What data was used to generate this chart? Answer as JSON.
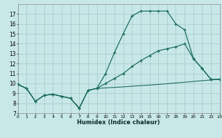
{
  "xlabel": "Humidex (Indice chaleur)",
  "background_color": "#c8e8e8",
  "grid_color": "#a8cccc",
  "line_color": "#1a6b5a",
  "xlim": [
    0,
    23
  ],
  "ylim": [
    7,
    18
  ],
  "yticks": [
    7,
    8,
    9,
    10,
    11,
    12,
    13,
    14,
    15,
    16,
    17
  ],
  "xticks": [
    0,
    1,
    2,
    3,
    4,
    5,
    6,
    7,
    8,
    9,
    10,
    11,
    12,
    13,
    14,
    15,
    16,
    17,
    18,
    19,
    20,
    21,
    22,
    23
  ],
  "line1_x": [
    0,
    1,
    2,
    3,
    4,
    5,
    6,
    7,
    8,
    9,
    10,
    11,
    12,
    13,
    14,
    15,
    16,
    17,
    18,
    19,
    20,
    21,
    22,
    23
  ],
  "line1_y": [
    9.9,
    9.5,
    8.2,
    8.8,
    8.9,
    8.7,
    8.5,
    7.5,
    9.3,
    9.5,
    11.0,
    13.1,
    15.0,
    16.8,
    17.3,
    17.3,
    17.3,
    17.3,
    16.0,
    15.4,
    12.5,
    11.5,
    10.4,
    10.4
  ],
  "line2_x": [
    0,
    1,
    2,
    3,
    4,
    5,
    6,
    7,
    8,
    9,
    10,
    11,
    12,
    13,
    14,
    15,
    16,
    17,
    18,
    19,
    20,
    21,
    22,
    23
  ],
  "line2_y": [
    9.9,
    9.5,
    8.2,
    8.8,
    8.9,
    8.7,
    8.5,
    7.5,
    9.3,
    9.5,
    10.0,
    10.5,
    11.0,
    11.7,
    12.3,
    12.8,
    13.3,
    13.5,
    13.7,
    14.0,
    12.5,
    11.5,
    10.4,
    10.4
  ],
  "line3_x": [
    0,
    1,
    2,
    3,
    4,
    5,
    6,
    7,
    8,
    9,
    10,
    11,
    12,
    13,
    14,
    15,
    16,
    17,
    18,
    19,
    20,
    21,
    22,
    23
  ],
  "line3_y": [
    9.9,
    9.5,
    8.2,
    8.8,
    8.9,
    8.7,
    8.5,
    7.5,
    9.3,
    9.5,
    9.55,
    9.6,
    9.65,
    9.72,
    9.78,
    9.83,
    9.9,
    9.97,
    10.05,
    10.12,
    10.2,
    10.28,
    10.35,
    10.42
  ]
}
